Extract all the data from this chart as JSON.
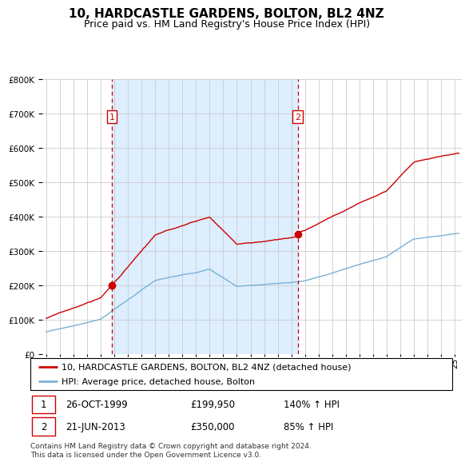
{
  "title": "10, HARDCASTLE GARDENS, BOLTON, BL2 4NZ",
  "subtitle": "Price paid vs. HM Land Registry's House Price Index (HPI)",
  "hpi_label": "HPI: Average price, detached house, Bolton",
  "property_label": "10, HARDCASTLE GARDENS, BOLTON, BL2 4NZ (detached house)",
  "sale1_date": "26-OCT-1999",
  "sale1_price": "£199,950",
  "sale1_hpi": "140% ↑ HPI",
  "sale2_date": "21-JUN-2013",
  "sale2_price": "£350,000",
  "sale2_hpi": "85% ↑ HPI",
  "footnote": "Contains HM Land Registry data © Crown copyright and database right 2024.\nThis data is licensed under the Open Government Licence v3.0.",
  "ylim": [
    0,
    800000
  ],
  "yticks": [
    0,
    100000,
    200000,
    300000,
    400000,
    500000,
    600000,
    700000,
    800000
  ],
  "xlim_start": 1994.7,
  "xlim_end": 2025.5,
  "sale1_x": 1999.82,
  "sale1_y": 199950,
  "sale2_x": 2013.47,
  "sale2_y": 350000,
  "vline1_x": 1999.82,
  "vline2_x": 2013.47,
  "property_color": "#cc0000",
  "hpi_color": "#7ab0d4",
  "vline_color": "#cc0000",
  "shade_color": "#ddeeff",
  "background_color": "#ffffff",
  "grid_color": "#cccccc",
  "title_fontsize": 11,
  "subtitle_fontsize": 9,
  "tick_fontsize": 7.5,
  "legend_fontsize": 8,
  "table_fontsize": 8.5,
  "footnote_fontsize": 6.5
}
